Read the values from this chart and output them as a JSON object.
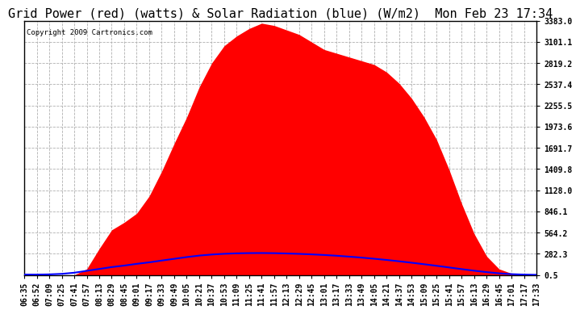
{
  "title": "Grid Power (red) (watts) & Solar Radiation (blue) (W/m2)  Mon Feb 23 17:34",
  "copyright": "Copyright 2009 Cartronics.com",
  "yticks": [
    0.5,
    282.3,
    564.2,
    846.1,
    1128.0,
    1409.8,
    1691.7,
    1973.6,
    2255.5,
    2537.4,
    2819.2,
    3101.1,
    3383.0
  ],
  "ylim": [
    0.5,
    3383.0
  ],
  "xtick_labels": [
    "06:35",
    "06:52",
    "07:09",
    "07:25",
    "07:41",
    "07:57",
    "08:13",
    "08:29",
    "08:45",
    "09:01",
    "09:17",
    "09:33",
    "09:49",
    "10:05",
    "10:21",
    "10:37",
    "10:53",
    "11:09",
    "11:25",
    "11:41",
    "11:57",
    "12:13",
    "12:29",
    "12:45",
    "13:01",
    "13:17",
    "13:33",
    "13:49",
    "14:05",
    "14:21",
    "14:37",
    "14:53",
    "15:09",
    "15:25",
    "15:41",
    "15:57",
    "16:13",
    "16:29",
    "16:45",
    "17:01",
    "17:17",
    "17:33"
  ],
  "red_data": [
    0.5,
    0.5,
    0.5,
    0.5,
    0.5,
    80,
    350,
    600,
    700,
    820,
    1050,
    1380,
    1750,
    2100,
    2500,
    2820,
    3050,
    3180,
    3280,
    3350,
    3320,
    3260,
    3200,
    3100,
    3000,
    2950,
    2900,
    2850,
    2800,
    2700,
    2550,
    2350,
    2100,
    1800,
    1400,
    950,
    550,
    250,
    80,
    20,
    0.5,
    0.5
  ],
  "blue_data": [
    5,
    5,
    8,
    15,
    30,
    55,
    80,
    105,
    125,
    148,
    168,
    192,
    215,
    238,
    258,
    272,
    282,
    288,
    291,
    292,
    290,
    286,
    281,
    274,
    266,
    256,
    244,
    231,
    216,
    200,
    182,
    163,
    143,
    122,
    100,
    78,
    57,
    38,
    22,
    11,
    5,
    2
  ],
  "bg_color": "#ffffff",
  "grid_color": "#b0b0b0",
  "red_color": "#ff0000",
  "blue_color": "#0000ff",
  "title_fontsize": 11,
  "tick_fontsize": 7,
  "copyright_fontsize": 6.5
}
